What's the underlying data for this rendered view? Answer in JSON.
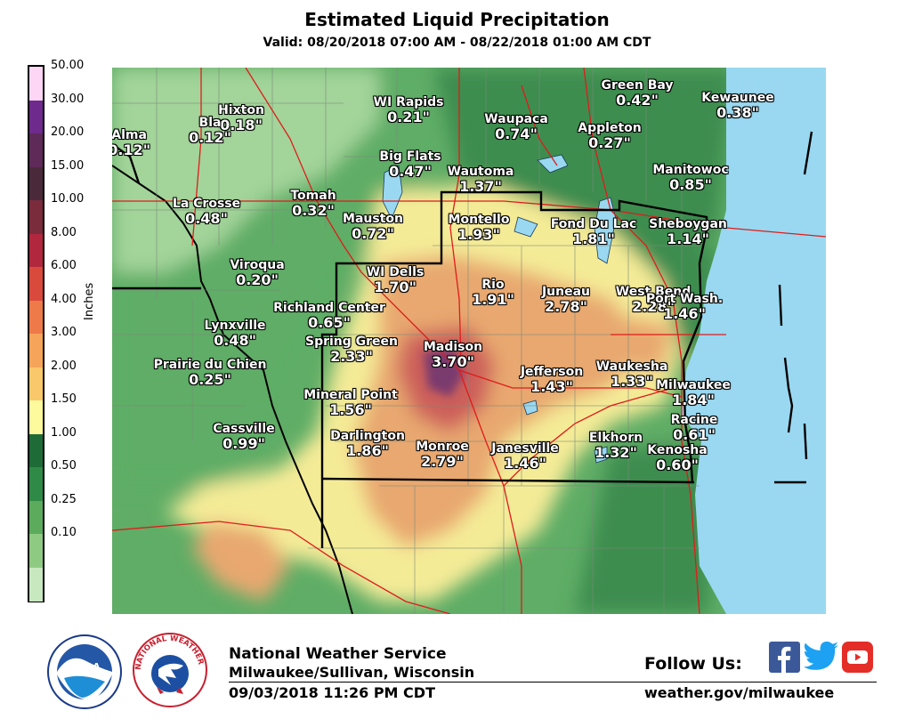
{
  "header": {
    "title": "Estimated Liquid Precipitation",
    "valid": "Valid: 08/20/2018 07:00 AM - 08/22/2018 01:00 AM CDT"
  },
  "legend": {
    "unit": "Inches",
    "ticks": [
      "50.00",
      "30.00",
      "20.00",
      "15.00",
      "10.00",
      "8.00",
      "6.00",
      "4.00",
      "3.00",
      "2.00",
      "1.50",
      "1.00",
      "0.50",
      "0.25",
      "0.10"
    ],
    "colors": [
      "#fcd6f4",
      "#6e2a8c",
      "#5e2a58",
      "#4a2a3a",
      "#7a2b3c",
      "#b1283e",
      "#d94a3c",
      "#ee7a4a",
      "#f5a45a",
      "#f8c86a",
      "#fdfa9e",
      "#1e6b37",
      "#2f8a47",
      "#5cab5d",
      "#8fca83",
      "#c8e8c0"
    ]
  },
  "map": {
    "colors": {
      "water": "#99d8f0",
      "light_green": "#a3d49a",
      "medium_green": "#5fad66",
      "dark_green": "#3c8d50",
      "yellow": "#f4eb97",
      "orange": "#e8a870",
      "red": "#cc5f5a",
      "purple": "#7a3b6e",
      "county_line": "#7a8a78",
      "highway": "#e01b1b",
      "boundary": "#000000"
    },
    "cities": [
      {
        "name": "Alma",
        "value": "0.12\""
      },
      {
        "name": "Hixton",
        "value": "0.18\""
      },
      {
        "name": "Bla",
        "value": "0.12\""
      },
      {
        "name": "WI Rapids",
        "value": "0.21\""
      },
      {
        "name": "Waupaca",
        "value": "0.74\""
      },
      {
        "name": "Green Bay",
        "value": "0.42\""
      },
      {
        "name": "Kewaunee",
        "value": "0.38\""
      },
      {
        "name": "Appleton",
        "value": "0.27\""
      },
      {
        "name": "Big Flats",
        "value": "0.47\""
      },
      {
        "name": "Wautoma",
        "value": "1.37\""
      },
      {
        "name": "Manitowoc",
        "value": "0.85\""
      },
      {
        "name": "Tomah",
        "value": "0.32\""
      },
      {
        "name": "La Crosse",
        "value": "0.48\""
      },
      {
        "name": "Mauston",
        "value": "0.72\""
      },
      {
        "name": "Montello",
        "value": "1.93\""
      },
      {
        "name": "Fond Du Lac",
        "value": "1.81\""
      },
      {
        "name": "Sheboygan",
        "value": "1.14\""
      },
      {
        "name": "Viroqua",
        "value": "0.20\""
      },
      {
        "name": "WI Dells",
        "value": "1.70\""
      },
      {
        "name": "Rio",
        "value": "1.91\""
      },
      {
        "name": "Juneau",
        "value": "2.78\""
      },
      {
        "name": "West Bend",
        "value": "2.28\""
      },
      {
        "name": "Port Wash.",
        "value": "1.46\""
      },
      {
        "name": "Richland Center",
        "value": "0.65\""
      },
      {
        "name": "Lynxville",
        "value": "0.48\""
      },
      {
        "name": "Spring Green",
        "value": "2.33\""
      },
      {
        "name": "Madison",
        "value": "3.70\""
      },
      {
        "name": "Prairie du Chien",
        "value": "0.25\""
      },
      {
        "name": "Jefferson",
        "value": "1.43\""
      },
      {
        "name": "Waukesha",
        "value": "1.33\""
      },
      {
        "name": "Milwaukee",
        "value": "1.84\""
      },
      {
        "name": "Mineral Point",
        "value": "1.56\""
      },
      {
        "name": "Racine",
        "value": "0.61\""
      },
      {
        "name": "Cassville",
        "value": "0.99\""
      },
      {
        "name": "Darlington",
        "value": "1.86\""
      },
      {
        "name": "Monroe",
        "value": "2.79\""
      },
      {
        "name": "Janesville",
        "value": "1.46\""
      },
      {
        "name": "Elkhorn",
        "value": "1.32\""
      },
      {
        "name": "Kenosha",
        "value": "0.60\""
      }
    ]
  },
  "footer": {
    "office": "National Weather Service",
    "location": "Milwaukee/Sullivan, Wisconsin",
    "issued": "09/03/2018 11:26 PM CDT",
    "follow_label": "Follow Us:",
    "url": "weather.gov/milwaukee",
    "noaa_logo_text": "NOAA",
    "nws_logo_text": "NATIONAL WEATHER SERVICE",
    "social": {
      "facebook_color": "#3b5998",
      "twitter_color": "#1da1f2",
      "youtube_color": "#e52d27"
    }
  }
}
